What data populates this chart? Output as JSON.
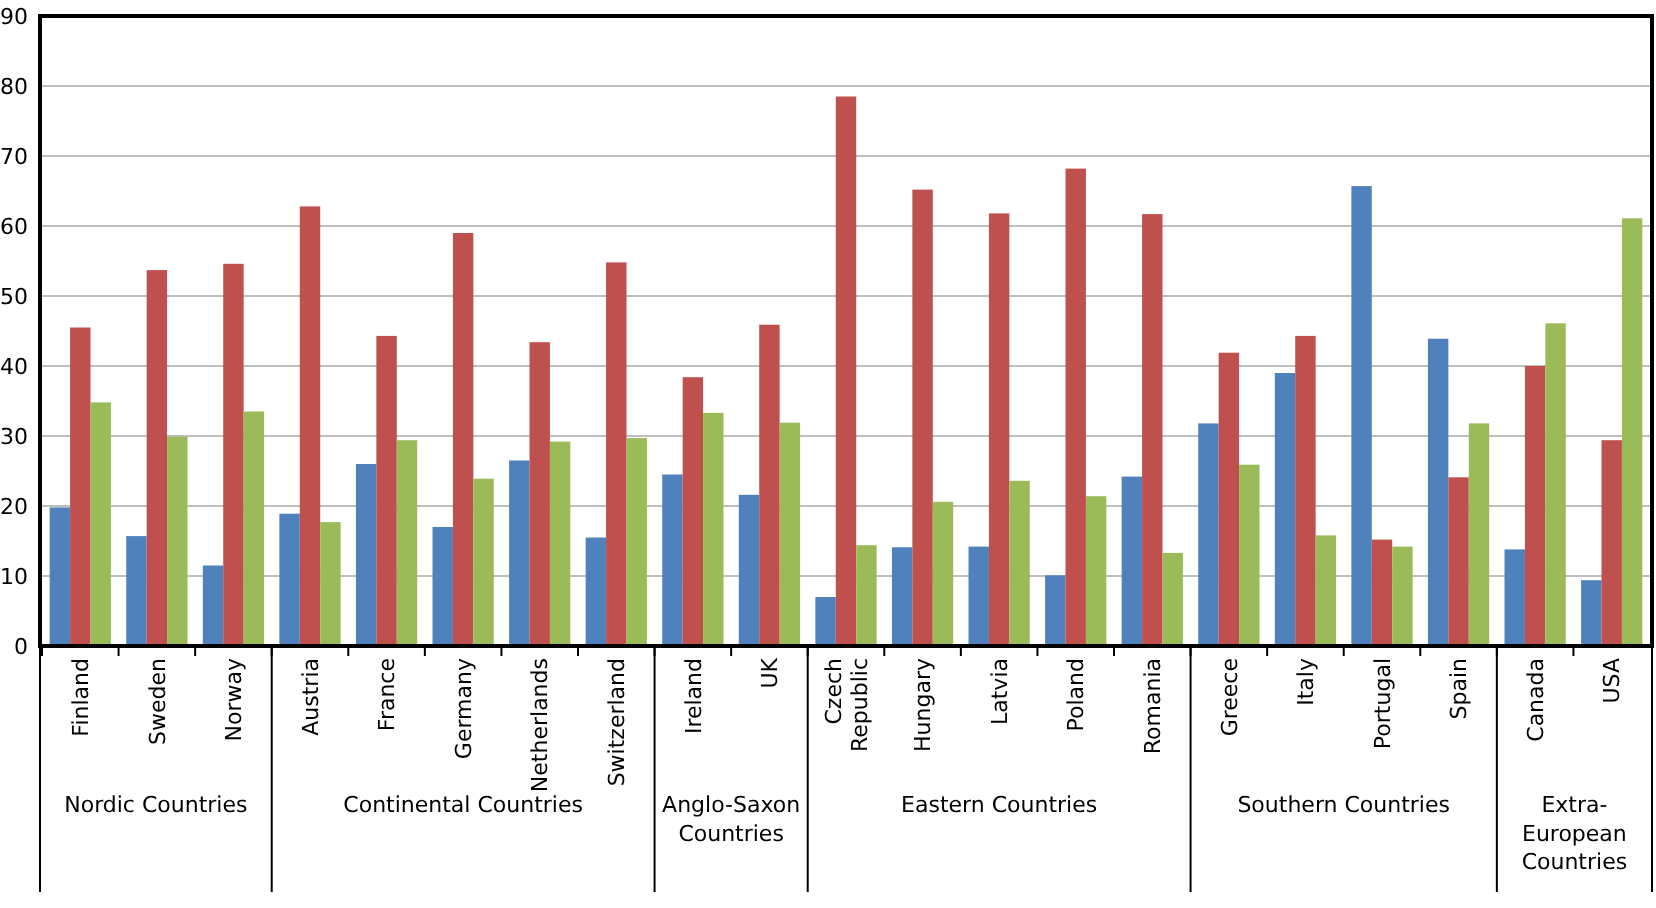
{
  "chart_data": {
    "type": "bar",
    "categories": [
      "Finland",
      "Sweden",
      "Norway",
      "Austria",
      "France",
      "Germany",
      "Netherlands",
      "Switzerland",
      "Ireland",
      "UK",
      "Czech Republic",
      "Hungary",
      "Latvia",
      "Poland",
      "Romania",
      "Greece",
      "Italy",
      "Portugal",
      "Spain",
      "Canada",
      "USA"
    ],
    "series": [
      {
        "color": "#4f81bd",
        "values": [
          19.8,
          15.7,
          11.5,
          18.9,
          26.0,
          17.0,
          26.5,
          15.5,
          24.5,
          21.6,
          7.0,
          14.1,
          14.2,
          10.1,
          24.2,
          31.8,
          39.0,
          65.7,
          43.9,
          13.8,
          9.4
        ]
      },
      {
        "color": "#c0504d",
        "values": [
          45.5,
          53.7,
          54.6,
          62.8,
          44.3,
          59.0,
          43.4,
          54.8,
          38.4,
          45.9,
          78.5,
          65.2,
          61.8,
          68.2,
          61.7,
          41.9,
          44.3,
          15.2,
          24.1,
          40.0,
          29.4
        ]
      },
      {
        "color": "#9bbb59",
        "values": [
          34.8,
          29.9,
          33.5,
          17.7,
          29.4,
          23.9,
          29.2,
          29.7,
          33.3,
          31.9,
          14.4,
          20.6,
          23.6,
          21.4,
          13.3,
          25.9,
          15.8,
          14.2,
          31.8,
          46.1,
          61.1
        ]
      }
    ],
    "ylim": [
      0,
      90
    ],
    "yticks": [
      0,
      10,
      20,
      30,
      40,
      50,
      60,
      70,
      80,
      90
    ],
    "grid": "y",
    "annotations": [
      "Nordic Countries",
      "Continental Countries",
      "Anglo-Saxon Countries",
      "Eastern Countries",
      "Southern Countries",
      "Extra-European Countries"
    ]
  }
}
